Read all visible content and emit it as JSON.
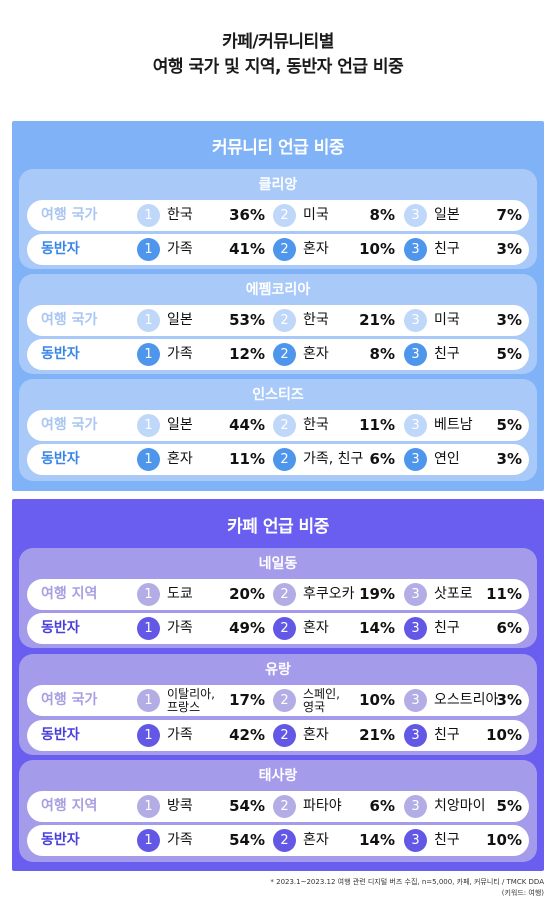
{
  "title_line1": "카페/커뮤니티별",
  "title_line2": "여행 국가 및 지역, 동반자 언급 비중",
  "sections": [
    {
      "title": "커뮤니티 언급 비중",
      "groups": [
        {
          "name": "클리앙",
          "rows": [
            {
              "label": "여행 국가",
              "items": [
                {
                  "rank": "1",
                  "name": "한국",
                  "pct": "36%"
                },
                {
                  "rank": "2",
                  "name": "미국",
                  "pct": "8%"
                },
                {
                  "rank": "3",
                  "name": "일본",
                  "pct": "7%"
                }
              ]
            },
            {
              "label": "동반자",
              "items": [
                {
                  "rank": "1",
                  "name": "가족",
                  "pct": "41%"
                },
                {
                  "rank": "2",
                  "name": "혼자",
                  "pct": "10%"
                },
                {
                  "rank": "3",
                  "name": "친구",
                  "pct": "3%"
                }
              ]
            }
          ]
        },
        {
          "name": "에펨코리아",
          "rows": [
            {
              "label": "여행 국가",
              "items": [
                {
                  "rank": "1",
                  "name": "일본",
                  "pct": "53%"
                },
                {
                  "rank": "2",
                  "name": "한국",
                  "pct": "21%"
                },
                {
                  "rank": "3",
                  "name": "미국",
                  "pct": "3%"
                }
              ]
            },
            {
              "label": "동반자",
              "items": [
                {
                  "rank": "1",
                  "name": "가족",
                  "pct": "12%"
                },
                {
                  "rank": "2",
                  "name": "혼자",
                  "pct": "8%"
                },
                {
                  "rank": "3",
                  "name": "친구",
                  "pct": "5%"
                }
              ]
            }
          ]
        },
        {
          "name": "인스티즈",
          "rows": [
            {
              "label": "여행 국가",
              "items": [
                {
                  "rank": "1",
                  "name": "일본",
                  "pct": "44%"
                },
                {
                  "rank": "2",
                  "name": "한국",
                  "pct": "11%"
                },
                {
                  "rank": "3",
                  "name": "베트남",
                  "pct": "5%"
                }
              ]
            },
            {
              "label": "동반자",
              "items": [
                {
                  "rank": "1",
                  "name": "혼자",
                  "pct": "11%"
                },
                {
                  "rank": "2",
                  "name": "가족, 친구",
                  "pct": "6%"
                },
                {
                  "rank": "3",
                  "name": "연인",
                  "pct": "3%"
                }
              ]
            }
          ]
        }
      ]
    },
    {
      "title": "카페 언급 비중",
      "groups": [
        {
          "name": "네일동",
          "rows": [
            {
              "label": "여행 지역",
              "items": [
                {
                  "rank": "1",
                  "name": "도쿄",
                  "pct": "20%"
                },
                {
                  "rank": "2",
                  "name": "후쿠오카",
                  "pct": "19%"
                },
                {
                  "rank": "3",
                  "name": "삿포로",
                  "pct": "11%"
                }
              ]
            },
            {
              "label": "동반자",
              "items": [
                {
                  "rank": "1",
                  "name": "가족",
                  "pct": "49%"
                },
                {
                  "rank": "2",
                  "name": "혼자",
                  "pct": "14%"
                },
                {
                  "rank": "3",
                  "name": "친구",
                  "pct": "6%"
                }
              ]
            }
          ]
        },
        {
          "name": "유랑",
          "rows": [
            {
              "label": "여행 국가",
              "items": [
                {
                  "rank": "1",
                  "name_line1": "이탈리아,",
                  "name_line2": "프랑스",
                  "pct": "17%"
                },
                {
                  "rank": "2",
                  "name_line1": "스페인,",
                  "name_line2": "영국",
                  "pct": "10%"
                },
                {
                  "rank": "3",
                  "name": "오스트리아",
                  "pct": "3%"
                }
              ]
            },
            {
              "label": "동반자",
              "items": [
                {
                  "rank": "1",
                  "name": "가족",
                  "pct": "42%"
                },
                {
                  "rank": "2",
                  "name": "혼자",
                  "pct": "21%"
                },
                {
                  "rank": "3",
                  "name": "친구",
                  "pct": "10%"
                }
              ]
            }
          ]
        },
        {
          "name": "태사랑",
          "rows": [
            {
              "label": "여행 지역",
              "items": [
                {
                  "rank": "1",
                  "name": "방콕",
                  "pct": "54%"
                },
                {
                  "rank": "2",
                  "name": "파타야",
                  "pct": "6%"
                },
                {
                  "rank": "3",
                  "name": "치앙마이",
                  "pct": "5%"
                }
              ]
            },
            {
              "label": "동반자",
              "items": [
                {
                  "rank": "1",
                  "name": "가족",
                  "pct": "54%"
                },
                {
                  "rank": "2",
                  "name": "혼자",
                  "pct": "14%"
                },
                {
                  "rank": "3",
                  "name": "친구",
                  "pct": "10%"
                }
              ]
            }
          ]
        }
      ]
    }
  ],
  "footnote_line1": "* 2023.1~2023.12 여행 관련 디지털 버즈 수집, n=5,000, 카페, 커뮤니티 / TMCK DDA",
  "footnote_line2": "(키워드: 여행)",
  "colors": {
    "blue_panel": "#7fb2f7",
    "purple_panel": "#6a5ef0"
  }
}
